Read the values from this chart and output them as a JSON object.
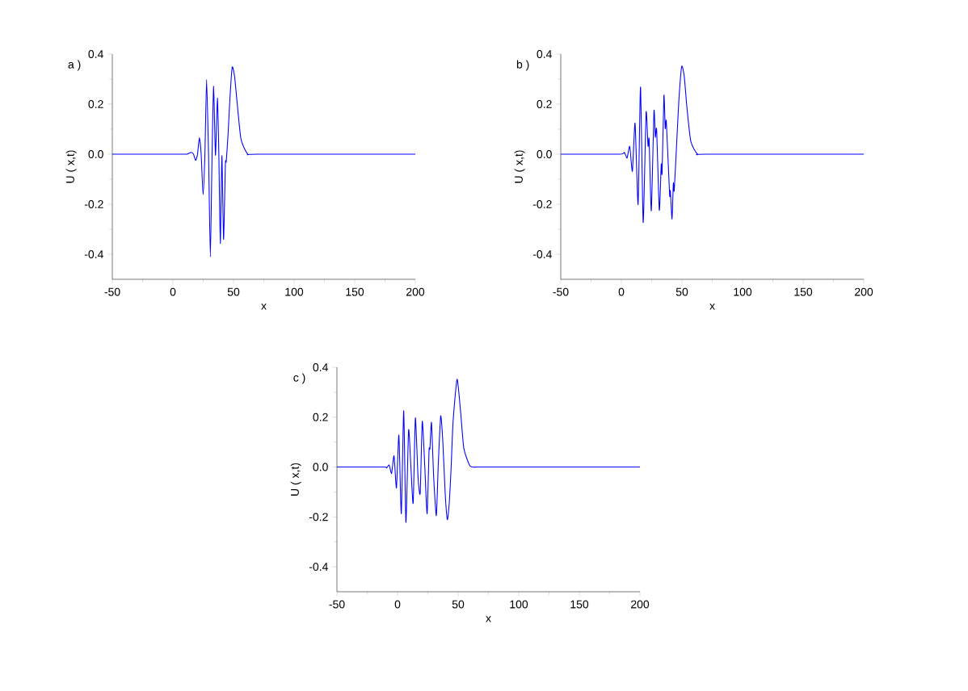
{
  "chart_data": [
    {
      "type": "line",
      "annotations": [
        "a )"
      ],
      "xlabel": "x",
      "ylabel": "U ( x,t)",
      "xlim": [
        -50,
        200
      ],
      "ylim": [
        -0.5,
        0.4
      ],
      "xticks": [
        -50,
        0,
        50,
        100,
        150,
        200
      ],
      "yticks": [
        {
          "value": -0.4,
          "label": "-0.4"
        },
        {
          "value": -0.2,
          "label": "-0.2"
        },
        {
          "value": 0,
          "label": "0.0"
        },
        {
          "value": 0.2,
          "label": "0.2"
        },
        {
          "value": 0.4,
          "label": "0.4"
        }
      ],
      "series": [
        {
          "color": "#0000ff",
          "x": [
            -50,
            8.4,
            12,
            15.1,
            17,
            18.7,
            20.3,
            21.8,
            23.3,
            24.9,
            26.4,
            27.8,
            29.4,
            30.9,
            32.3,
            33.6,
            35.1,
            36.7,
            37.9,
            39.1,
            40.4,
            41.8,
            43.3,
            44,
            45.5,
            47,
            48.9,
            50.9,
            52.9,
            56.2,
            61.8,
            70,
            200
          ],
          "values": [
            0,
            0,
            0.001,
            0.007,
            0,
            -0.025,
            0,
            0.066,
            0,
            -0.162,
            0,
            0.298,
            0,
            -0.41,
            0,
            0.272,
            -0.004,
            0.224,
            0,
            -0.357,
            -0.006,
            -0.34,
            -0.038,
            -0.03,
            0.08,
            0.22,
            0.348,
            0.31,
            0.21,
            0.059,
            0,
            0,
            0
          ]
        }
      ]
    },
    {
      "type": "line",
      "annotations": [
        "b )"
      ],
      "xlabel": "x",
      "ylabel": "U ( x,t)",
      "xlim": [
        -50,
        200
      ],
      "ylim": [
        -0.5,
        0.4
      ],
      "xticks": [
        -50,
        0,
        50,
        100,
        150,
        200
      ],
      "yticks": [
        {
          "value": -0.4,
          "label": "-0.4"
        },
        {
          "value": -0.2,
          "label": "-0.2"
        },
        {
          "value": 0,
          "label": "0.0"
        },
        {
          "value": 0.2,
          "label": "0.2"
        },
        {
          "value": 0.4,
          "label": "0.4"
        }
      ],
      "series": [
        {
          "color": "#0000ff",
          "x": [
            -50,
            -1.6,
            2.4,
            4.7,
            6.9,
            9.1,
            11.3,
            13.8,
            15.8,
            18,
            20.4,
            22,
            22.9,
            24.7,
            26.9,
            28,
            29.1,
            31.3,
            32.9,
            33.6,
            35.1,
            36.2,
            37.1,
            39.8,
            40.4,
            41.8,
            42.9,
            43.6,
            45.6,
            47.5,
            49.8,
            51.9,
            54,
            57.3,
            62.9,
            70,
            200
          ],
          "values": [
            0,
            0,
            0.007,
            -0.015,
            0.031,
            -0.068,
            0.124,
            -0.201,
            0.268,
            -0.273,
            0.167,
            0.032,
            0.059,
            -0.226,
            0.172,
            0.068,
            0.097,
            -0.224,
            -0.04,
            -0.076,
            0.235,
            0.103,
            0.13,
            -0.162,
            -0.146,
            -0.259,
            -0.116,
            -0.146,
            0.041,
            0.22,
            0.351,
            0.31,
            0.191,
            0.051,
            0,
            0,
            0
          ]
        }
      ]
    },
    {
      "type": "line",
      "annotations": [
        "c )"
      ],
      "xlabel": "x",
      "ylabel": "U ( x,t)",
      "xlim": [
        -50,
        200
      ],
      "ylim": [
        -0.5,
        0.4
      ],
      "xticks": [
        -50,
        0,
        50,
        100,
        150,
        200
      ],
      "yticks": [
        {
          "value": -0.4,
          "label": "-0.4"
        },
        {
          "value": -0.2,
          "label": "-0.2"
        },
        {
          "value": 0,
          "label": "0.0"
        },
        {
          "value": 0.2,
          "label": "0.2"
        },
        {
          "value": 0.4,
          "label": "0.4"
        }
      ],
      "series": [
        {
          "color": "#0000ff",
          "x": [
            -50,
            -11.3,
            -9.1,
            -6.9,
            -4.9,
            -2.9,
            -0.9,
            1.1,
            3.1,
            5.1,
            6.9,
            9.1,
            10.9,
            12.9,
            14.7,
            16.9,
            18.7,
            20.4,
            22.4,
            24.4,
            26,
            26.7,
            28,
            29.8,
            32,
            33.6,
            35.6,
            37.3,
            39.3,
            41.1,
            42.7,
            44.2,
            45.8,
            49.1,
            52,
            54.7,
            59.8,
            65.3,
            75,
            200
          ],
          "values": [
            0,
            0,
            -0.004,
            0.008,
            -0.026,
            0.045,
            -0.084,
            0.128,
            -0.187,
            0.226,
            -0.222,
            0.148,
            0.012,
            -0.145,
            0.197,
            -0.04,
            -0.105,
            0.183,
            0.01,
            -0.187,
            0.067,
            0.073,
            0.179,
            -0.04,
            -0.195,
            0.01,
            0.205,
            0.108,
            -0.105,
            -0.211,
            -0.143,
            -0.003,
            0.181,
            0.352,
            0.223,
            0.075,
            0.004,
            0,
            0,
            0
          ]
        }
      ]
    }
  ]
}
